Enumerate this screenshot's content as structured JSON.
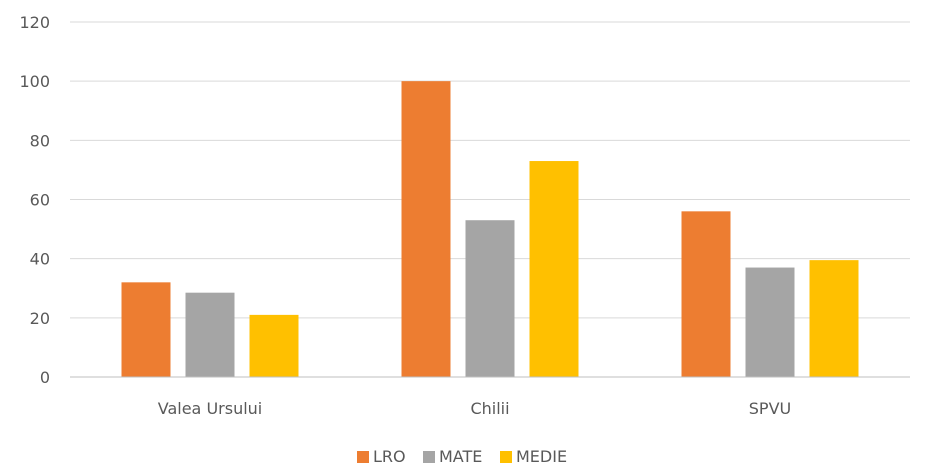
{
  "chart_data": {
    "type": "bar",
    "title": "",
    "xlabel": "",
    "ylabel": "",
    "categories": [
      "Valea Ursului",
      "Chilii",
      "SPVU"
    ],
    "series": [
      {
        "name": "LRO",
        "values": [
          32,
          100,
          56
        ],
        "color": "#ED7D31"
      },
      {
        "name": "MATE",
        "values": [
          28.5,
          53,
          37
        ],
        "color": "#A5A5A5"
      },
      {
        "name": "MEDIE",
        "values": [
          21,
          73,
          39.5
        ],
        "color": "#FFC000"
      }
    ],
    "ylim": [
      0,
      120
    ],
    "yticks": [
      "0",
      "20",
      "40",
      "60",
      "80",
      "100",
      "120"
    ],
    "grid": true,
    "legend_position": "bottom"
  }
}
